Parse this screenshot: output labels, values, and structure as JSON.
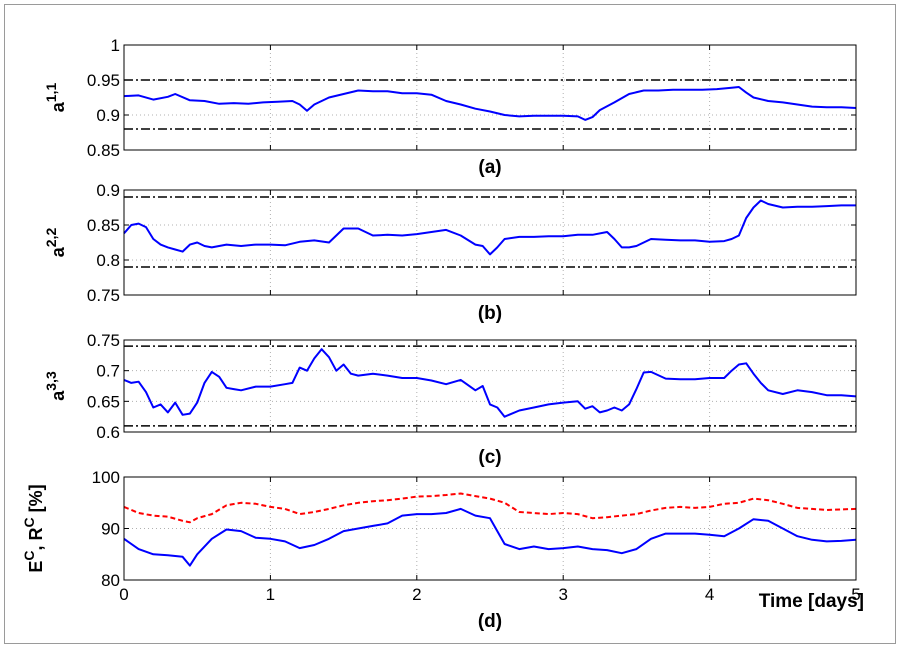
{
  "colors": {
    "primary": "#0000ff",
    "secondary": "#ff0000",
    "threshold": "#000000",
    "grid": "#b0b0b0"
  },
  "xaxis": {
    "ticks": [
      0,
      1,
      2,
      3,
      4,
      5
    ],
    "label": "Time [days]",
    "range": [
      0,
      5
    ]
  },
  "chart_data": [
    {
      "type": "line",
      "panel_label": "(a)",
      "ylabel": "a",
      "ylabel_sup": "1,1",
      "ylim": [
        0.85,
        1.0
      ],
      "yticks": [
        "0.85",
        "0.9",
        "0.95",
        "1"
      ],
      "ytick_values": [
        0.85,
        0.9,
        0.95,
        1.0
      ],
      "grid": true,
      "thresholds": [
        0.95,
        0.88
      ],
      "series": [
        {
          "style": "solid",
          "color": "#0000ff",
          "x": [
            0,
            0.1,
            0.2,
            0.3,
            0.35,
            0.45,
            0.55,
            0.65,
            0.75,
            0.85,
            0.95,
            1.05,
            1.15,
            1.2,
            1.25,
            1.3,
            1.4,
            1.5,
            1.6,
            1.7,
            1.8,
            1.9,
            2.0,
            2.1,
            2.2,
            2.3,
            2.4,
            2.5,
            2.6,
            2.7,
            2.8,
            2.9,
            3.0,
            3.1,
            3.15,
            3.2,
            3.25,
            3.35,
            3.45,
            3.55,
            3.65,
            3.75,
            3.85,
            3.95,
            4.05,
            4.15,
            4.2,
            4.25,
            4.3,
            4.4,
            4.5,
            4.6,
            4.7,
            4.8,
            4.9,
            5.0
          ],
          "y": [
            0.927,
            0.928,
            0.922,
            0.926,
            0.93,
            0.921,
            0.92,
            0.916,
            0.917,
            0.916,
            0.918,
            0.919,
            0.92,
            0.915,
            0.906,
            0.915,
            0.925,
            0.93,
            0.935,
            0.934,
            0.934,
            0.931,
            0.931,
            0.929,
            0.92,
            0.915,
            0.909,
            0.905,
            0.9,
            0.898,
            0.899,
            0.899,
            0.899,
            0.898,
            0.893,
            0.897,
            0.907,
            0.918,
            0.93,
            0.935,
            0.935,
            0.936,
            0.936,
            0.936,
            0.937,
            0.939,
            0.94,
            0.932,
            0.925,
            0.92,
            0.918,
            0.915,
            0.912,
            0.911,
            0.911,
            0.91
          ]
        }
      ]
    },
    {
      "type": "line",
      "panel_label": "(b)",
      "ylabel": "a",
      "ylabel_sup": "2,2",
      "ylim": [
        0.75,
        0.9
      ],
      "yticks": [
        "0.75",
        "0.8",
        "0.85",
        "0.9"
      ],
      "ytick_values": [
        0.75,
        0.8,
        0.85,
        0.9
      ],
      "grid": true,
      "thresholds": [
        0.89,
        0.79
      ],
      "series": [
        {
          "style": "solid",
          "color": "#0000ff",
          "x": [
            0,
            0.05,
            0.1,
            0.15,
            0.2,
            0.25,
            0.3,
            0.35,
            0.4,
            0.45,
            0.5,
            0.55,
            0.6,
            0.7,
            0.8,
            0.9,
            1.0,
            1.1,
            1.2,
            1.3,
            1.4,
            1.5,
            1.6,
            1.7,
            1.8,
            1.9,
            2.0,
            2.1,
            2.2,
            2.3,
            2.4,
            2.45,
            2.5,
            2.55,
            2.6,
            2.7,
            2.8,
            2.9,
            3.0,
            3.1,
            3.2,
            3.3,
            3.35,
            3.4,
            3.45,
            3.5,
            3.55,
            3.6,
            3.7,
            3.8,
            3.9,
            4.0,
            4.1,
            4.15,
            4.2,
            4.25,
            4.3,
            4.35,
            4.4,
            4.5,
            4.6,
            4.7,
            4.8,
            4.9,
            5.0
          ],
          "y": [
            0.838,
            0.85,
            0.852,
            0.847,
            0.83,
            0.822,
            0.818,
            0.815,
            0.812,
            0.822,
            0.825,
            0.82,
            0.818,
            0.822,
            0.82,
            0.822,
            0.822,
            0.821,
            0.826,
            0.828,
            0.825,
            0.845,
            0.845,
            0.835,
            0.836,
            0.835,
            0.837,
            0.84,
            0.843,
            0.835,
            0.822,
            0.82,
            0.808,
            0.818,
            0.83,
            0.833,
            0.833,
            0.834,
            0.834,
            0.836,
            0.836,
            0.84,
            0.83,
            0.818,
            0.818,
            0.82,
            0.825,
            0.83,
            0.829,
            0.828,
            0.828,
            0.826,
            0.827,
            0.83,
            0.835,
            0.86,
            0.875,
            0.885,
            0.88,
            0.875,
            0.876,
            0.876,
            0.877,
            0.878,
            0.878
          ]
        }
      ]
    },
    {
      "type": "line",
      "panel_label": "(c)",
      "ylabel": "a",
      "ylabel_sup": "3,3",
      "ylim": [
        0.6,
        0.75
      ],
      "yticks": [
        "0.6",
        "0.65",
        "0.7",
        "0.75"
      ],
      "ytick_values": [
        0.6,
        0.65,
        0.7,
        0.75
      ],
      "grid": true,
      "thresholds": [
        0.74,
        0.61
      ],
      "series": [
        {
          "style": "solid",
          "color": "#0000ff",
          "x": [
            0,
            0.05,
            0.1,
            0.15,
            0.2,
            0.25,
            0.3,
            0.35,
            0.4,
            0.45,
            0.5,
            0.55,
            0.6,
            0.65,
            0.7,
            0.75,
            0.8,
            0.9,
            1.0,
            1.1,
            1.15,
            1.2,
            1.25,
            1.3,
            1.35,
            1.4,
            1.45,
            1.5,
            1.55,
            1.6,
            1.7,
            1.8,
            1.9,
            2.0,
            2.1,
            2.2,
            2.3,
            2.4,
            2.45,
            2.5,
            2.55,
            2.6,
            2.7,
            2.8,
            2.9,
            3.0,
            3.1,
            3.15,
            3.2,
            3.25,
            3.3,
            3.35,
            3.4,
            3.45,
            3.5,
            3.55,
            3.6,
            3.7,
            3.8,
            3.9,
            4.0,
            4.1,
            4.15,
            4.2,
            4.25,
            4.3,
            4.35,
            4.4,
            4.5,
            4.6,
            4.7,
            4.8,
            4.9,
            5.0
          ],
          "y": [
            0.685,
            0.68,
            0.682,
            0.665,
            0.64,
            0.645,
            0.632,
            0.648,
            0.628,
            0.63,
            0.648,
            0.68,
            0.698,
            0.69,
            0.672,
            0.67,
            0.668,
            0.674,
            0.674,
            0.678,
            0.68,
            0.705,
            0.7,
            0.72,
            0.735,
            0.722,
            0.7,
            0.71,
            0.695,
            0.692,
            0.695,
            0.692,
            0.688,
            0.688,
            0.684,
            0.678,
            0.685,
            0.668,
            0.675,
            0.645,
            0.64,
            0.625,
            0.635,
            0.64,
            0.645,
            0.648,
            0.65,
            0.638,
            0.642,
            0.632,
            0.635,
            0.64,
            0.635,
            0.645,
            0.67,
            0.697,
            0.698,
            0.687,
            0.686,
            0.686,
            0.688,
            0.688,
            0.7,
            0.71,
            0.712,
            0.695,
            0.68,
            0.668,
            0.662,
            0.668,
            0.665,
            0.66,
            0.66,
            0.658
          ]
        }
      ]
    },
    {
      "type": "line",
      "panel_label": "(d)",
      "ylabel": "E",
      "ylabel_sup": "C",
      "ylabel_mid": ", R",
      "ylabel_sup2": "C",
      "ylabel_tail": " [%]",
      "ylim": [
        80,
        100
      ],
      "yticks": [
        "80",
        "90",
        "100"
      ],
      "ytick_values": [
        80,
        90,
        100
      ],
      "grid": true,
      "thresholds": [],
      "series": [
        {
          "style": "dashed",
          "color": "#ff0000",
          "x": [
            0,
            0.1,
            0.2,
            0.3,
            0.4,
            0.45,
            0.5,
            0.6,
            0.7,
            0.8,
            0.9,
            1.0,
            1.1,
            1.2,
            1.3,
            1.4,
            1.5,
            1.6,
            1.7,
            1.8,
            1.9,
            2.0,
            2.1,
            2.2,
            2.3,
            2.4,
            2.5,
            2.6,
            2.7,
            2.8,
            2.9,
            3.0,
            3.1,
            3.2,
            3.3,
            3.4,
            3.5,
            3.6,
            3.7,
            3.8,
            3.9,
            4.0,
            4.1,
            4.2,
            4.3,
            4.4,
            4.5,
            4.6,
            4.7,
            4.8,
            4.9,
            5.0
          ],
          "y": [
            94.2,
            93.0,
            92.5,
            92.3,
            91.5,
            91.2,
            92.0,
            92.8,
            94.5,
            95.0,
            94.8,
            94.2,
            93.8,
            92.8,
            93.2,
            93.8,
            94.5,
            95.0,
            95.3,
            95.5,
            95.8,
            96.2,
            96.3,
            96.5,
            96.8,
            96.3,
            95.8,
            95.0,
            93.2,
            93.0,
            92.8,
            93.0,
            92.8,
            92.0,
            92.2,
            92.5,
            92.8,
            93.5,
            94.0,
            94.2,
            94.0,
            94.2,
            94.8,
            95.0,
            95.8,
            95.5,
            94.8,
            94.0,
            93.8,
            93.6,
            93.7,
            93.8
          ]
        },
        {
          "style": "solid",
          "color": "#0000ff",
          "x": [
            0,
            0.1,
            0.2,
            0.3,
            0.4,
            0.45,
            0.5,
            0.6,
            0.7,
            0.8,
            0.9,
            1.0,
            1.1,
            1.2,
            1.3,
            1.4,
            1.5,
            1.6,
            1.7,
            1.8,
            1.9,
            2.0,
            2.1,
            2.2,
            2.3,
            2.4,
            2.5,
            2.6,
            2.7,
            2.8,
            2.9,
            3.0,
            3.1,
            3.2,
            3.3,
            3.4,
            3.5,
            3.6,
            3.7,
            3.8,
            3.9,
            4.0,
            4.1,
            4.2,
            4.3,
            4.4,
            4.5,
            4.6,
            4.7,
            4.8,
            4.9,
            5.0
          ],
          "y": [
            88.0,
            86.0,
            85.0,
            84.8,
            84.5,
            82.8,
            85.0,
            88.0,
            89.8,
            89.5,
            88.2,
            88.0,
            87.5,
            86.2,
            86.8,
            88.0,
            89.5,
            90.0,
            90.5,
            91.0,
            92.5,
            92.8,
            92.8,
            93.0,
            93.8,
            92.5,
            92.0,
            87.0,
            86.0,
            86.5,
            86.0,
            86.2,
            86.5,
            86.0,
            85.8,
            85.2,
            86.0,
            88.0,
            89.0,
            89.0,
            89.0,
            88.8,
            88.5,
            90.0,
            91.8,
            91.5,
            90.0,
            88.5,
            87.8,
            87.5,
            87.6,
            87.8
          ]
        }
      ]
    }
  ]
}
